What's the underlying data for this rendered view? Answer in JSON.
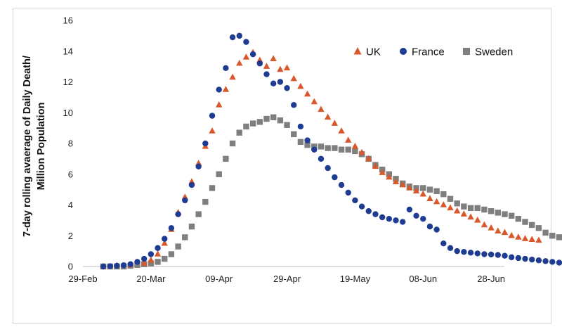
{
  "chart_data": {
    "type": "scatter",
    "title": "",
    "xlabel": "",
    "ylabel_lines": [
      "7-day rolling avaerage of Daily Death/",
      "Million Population"
    ],
    "x_tick_labels": [
      "29-Feb",
      "20-Mar",
      "09-Apr",
      "29-Apr",
      "19-May",
      "08-Jun",
      "28-Jun"
    ],
    "y_tick_labels": [
      "0",
      "2",
      "4",
      "6",
      "8",
      "10",
      "12",
      "14",
      "16"
    ],
    "x_range_days": [
      0,
      120
    ],
    "ylim": [
      0,
      16
    ],
    "legend_position": "top-right",
    "x_unit": "days since 29-Feb",
    "series": [
      {
        "name": "UK",
        "marker": "triangle",
        "color": "#d9582b",
        "points": [
          [
            6,
            0
          ],
          [
            10,
            0.05
          ],
          [
            14,
            0.1
          ],
          [
            18,
            0.2
          ],
          [
            20,
            0.4
          ],
          [
            22,
            0.8
          ],
          [
            24,
            1.5
          ],
          [
            26,
            2.4
          ],
          [
            28,
            3.5
          ],
          [
            30,
            4.5
          ],
          [
            32,
            5.5
          ],
          [
            34,
            6.7
          ],
          [
            36,
            7.8
          ],
          [
            38,
            8.8
          ],
          [
            40,
            10.5
          ],
          [
            42,
            11.5
          ],
          [
            44,
            12.3
          ],
          [
            46,
            13.2
          ],
          [
            48,
            13.6
          ],
          [
            50,
            13.9
          ],
          [
            52,
            13.4
          ],
          [
            54,
            13.0
          ],
          [
            56,
            13.5
          ],
          [
            58,
            12.8
          ],
          [
            60,
            12.9
          ],
          [
            62,
            12.2
          ],
          [
            64,
            11.7
          ],
          [
            66,
            11.2
          ],
          [
            68,
            10.7
          ],
          [
            70,
            10.2
          ],
          [
            72,
            9.7
          ],
          [
            74,
            9.3
          ],
          [
            76,
            8.8
          ],
          [
            78,
            8.2
          ],
          [
            80,
            7.8
          ],
          [
            82,
            7.4
          ],
          [
            84,
            7.0
          ],
          [
            86,
            6.5
          ],
          [
            88,
            6.1
          ],
          [
            90,
            5.8
          ],
          [
            92,
            5.5
          ],
          [
            94,
            5.3
          ],
          [
            96,
            5.1
          ],
          [
            98,
            4.9
          ],
          [
            100,
            4.7
          ],
          [
            102,
            4.4
          ],
          [
            104,
            4.2
          ],
          [
            106,
            4.0
          ],
          [
            108,
            3.8
          ],
          [
            110,
            3.6
          ],
          [
            112,
            3.4
          ],
          [
            114,
            3.2
          ],
          [
            116,
            3.0
          ],
          [
            118,
            2.7
          ],
          [
            120,
            2.5
          ],
          [
            122,
            2.3
          ],
          [
            124,
            2.2
          ],
          [
            126,
            2.0
          ],
          [
            128,
            1.9
          ],
          [
            130,
            1.8
          ],
          [
            132,
            1.75
          ],
          [
            134,
            1.7
          ]
        ]
      },
      {
        "name": "France",
        "marker": "circle",
        "color": "#1f3c93",
        "points": [
          [
            6,
            0
          ],
          [
            8,
            0.02
          ],
          [
            10,
            0.05
          ],
          [
            12,
            0.08
          ],
          [
            14,
            0.15
          ],
          [
            16,
            0.3
          ],
          [
            18,
            0.5
          ],
          [
            20,
            0.8
          ],
          [
            22,
            1.2
          ],
          [
            24,
            1.8
          ],
          [
            26,
            2.5
          ],
          [
            28,
            3.4
          ],
          [
            30,
            4.3
          ],
          [
            32,
            5.3
          ],
          [
            34,
            6.5
          ],
          [
            36,
            8.0
          ],
          [
            38,
            9.8
          ],
          [
            40,
            11.5
          ],
          [
            42,
            12.9
          ],
          [
            44,
            14.9
          ],
          [
            46,
            15.0
          ],
          [
            48,
            14.6
          ],
          [
            50,
            13.8
          ],
          [
            52,
            13.2
          ],
          [
            54,
            12.5
          ],
          [
            56,
            11.9
          ],
          [
            58,
            12.0
          ],
          [
            60,
            11.6
          ],
          [
            62,
            10.5
          ],
          [
            64,
            9.1
          ],
          [
            66,
            8.2
          ],
          [
            68,
            7.6
          ],
          [
            70,
            7.0
          ],
          [
            72,
            6.4
          ],
          [
            74,
            5.8
          ],
          [
            76,
            5.3
          ],
          [
            78,
            4.8
          ],
          [
            80,
            4.3
          ],
          [
            82,
            3.9
          ],
          [
            84,
            3.6
          ],
          [
            86,
            3.4
          ],
          [
            88,
            3.2
          ],
          [
            90,
            3.1
          ],
          [
            92,
            3.0
          ],
          [
            94,
            2.9
          ],
          [
            96,
            3.7
          ],
          [
            98,
            3.3
          ],
          [
            100,
            3.1
          ],
          [
            102,
            2.6
          ],
          [
            104,
            2.4
          ],
          [
            106,
            1.5
          ],
          [
            108,
            1.2
          ],
          [
            110,
            1.0
          ],
          [
            112,
            0.95
          ],
          [
            114,
            0.9
          ],
          [
            116,
            0.85
          ],
          [
            118,
            0.8
          ],
          [
            120,
            0.78
          ],
          [
            122,
            0.75
          ],
          [
            124,
            0.7
          ],
          [
            126,
            0.6
          ],
          [
            128,
            0.55
          ],
          [
            130,
            0.5
          ],
          [
            132,
            0.45
          ],
          [
            134,
            0.4
          ],
          [
            136,
            0.35
          ],
          [
            138,
            0.3
          ],
          [
            140,
            0.25
          ]
        ]
      },
      {
        "name": "Sweden",
        "marker": "square",
        "color": "#7f7f7f",
        "points": [
          [
            6,
            0
          ],
          [
            8,
            0
          ],
          [
            10,
            0
          ],
          [
            12,
            0
          ],
          [
            14,
            0.05
          ],
          [
            16,
            0.1
          ],
          [
            18,
            0.15
          ],
          [
            20,
            0.2
          ],
          [
            22,
            0.3
          ],
          [
            24,
            0.5
          ],
          [
            26,
            0.8
          ],
          [
            28,
            1.3
          ],
          [
            30,
            1.9
          ],
          [
            32,
            2.6
          ],
          [
            34,
            3.4
          ],
          [
            36,
            4.2
          ],
          [
            38,
            5.1
          ],
          [
            40,
            6.0
          ],
          [
            42,
            7.0
          ],
          [
            44,
            8.0
          ],
          [
            46,
            8.7
          ],
          [
            48,
            9.1
          ],
          [
            50,
            9.3
          ],
          [
            52,
            9.4
          ],
          [
            54,
            9.6
          ],
          [
            56,
            9.7
          ],
          [
            58,
            9.5
          ],
          [
            60,
            9.2
          ],
          [
            62,
            8.6
          ],
          [
            64,
            8.1
          ],
          [
            66,
            7.9
          ],
          [
            68,
            7.8
          ],
          [
            70,
            7.8
          ],
          [
            72,
            7.7
          ],
          [
            74,
            7.7
          ],
          [
            76,
            7.6
          ],
          [
            78,
            7.6
          ],
          [
            80,
            7.5
          ],
          [
            82,
            7.3
          ],
          [
            84,
            7.0
          ],
          [
            86,
            6.6
          ],
          [
            88,
            6.3
          ],
          [
            90,
            6.0
          ],
          [
            92,
            5.7
          ],
          [
            94,
            5.4
          ],
          [
            96,
            5.2
          ],
          [
            98,
            5.1
          ],
          [
            100,
            5.1
          ],
          [
            102,
            5.0
          ],
          [
            104,
            4.9
          ],
          [
            106,
            4.7
          ],
          [
            108,
            4.4
          ],
          [
            110,
            4.1
          ],
          [
            112,
            3.9
          ],
          [
            114,
            3.8
          ],
          [
            116,
            3.8
          ],
          [
            118,
            3.7
          ],
          [
            120,
            3.6
          ],
          [
            122,
            3.5
          ],
          [
            124,
            3.4
          ],
          [
            126,
            3.3
          ],
          [
            128,
            3.1
          ],
          [
            130,
            2.9
          ],
          [
            132,
            2.7
          ],
          [
            134,
            2.5
          ],
          [
            136,
            2.2
          ],
          [
            138,
            2.0
          ],
          [
            140,
            1.9
          ]
        ]
      }
    ]
  }
}
